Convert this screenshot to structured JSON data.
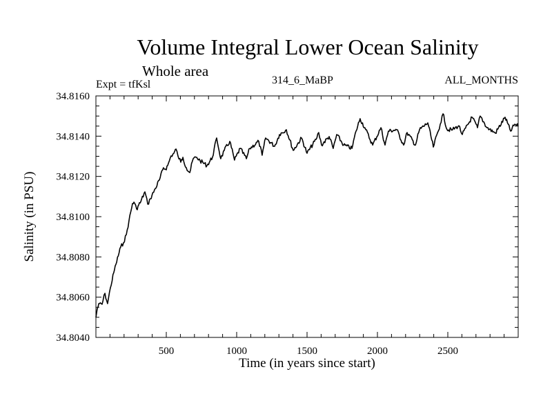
{
  "chart_data": {
    "type": "line",
    "title": "Volume Integral Lower Ocean Salinity",
    "subtitle": "Whole area",
    "annotations": {
      "left": "Expt = tfKsl",
      "center": "314_6_MaBP",
      "right": "ALL_MONTHS"
    },
    "xlabel": "Time (in years since start)",
    "ylabel": "Salinity (in PSU)",
    "xlim": [
      0,
      3000
    ],
    "ylim": [
      34.804,
      34.816
    ],
    "x_ticks": [
      500,
      1000,
      1500,
      2000,
      2500
    ],
    "x_tick_labels": [
      "500",
      "1000",
      "1500",
      "2000",
      "2500"
    ],
    "x_minor_step": 100,
    "y_ticks": [
      34.804,
      34.806,
      34.808,
      34.81,
      34.812,
      34.814,
      34.816
    ],
    "y_tick_labels": [
      "34.8040",
      "34.8060",
      "34.8080",
      "34.8100",
      "34.8120",
      "34.8140",
      "34.8160"
    ],
    "y_minor_step": 0.0005,
    "grid": false,
    "series": [
      {
        "name": "Salinity",
        "color": "#000000",
        "x": [
          0,
          10,
          25,
          44,
          64,
          83,
          103,
          127,
          142,
          176,
          196,
          216,
          235,
          260,
          270,
          289,
          304,
          319,
          348,
          368,
          387,
          422,
          451,
          480,
          495,
          510,
          534,
          554,
          569,
          583,
          603,
          618,
          642,
          667,
          691,
          716,
          740,
          789,
          828,
          858,
          887,
          912,
          951,
          985,
          1025,
          1069,
          1093,
          1157,
          1181,
          1206,
          1270,
          1304,
          1353,
          1402,
          1461,
          1500,
          1564,
          1583,
          1603,
          1657,
          1686,
          1711,
          1760,
          1819,
          1848,
          1877,
          1917,
          1966,
          2025,
          2054,
          2078,
          2137,
          2186,
          2211,
          2270,
          2299,
          2358,
          2397,
          2446,
          2466,
          2495,
          2534,
          2578,
          2603,
          2672,
          2711,
          2730,
          2779,
          2838,
          2907,
          2946,
          2975,
          3000
        ],
        "y": [
          34.80499,
          34.80544,
          34.80568,
          34.80565,
          34.80619,
          34.80568,
          34.80647,
          34.80722,
          34.80763,
          34.80849,
          34.8087,
          34.80911,
          34.80979,
          34.81065,
          34.81072,
          34.81038,
          34.81058,
          34.81075,
          34.81123,
          34.81062,
          34.81089,
          34.8114,
          34.81182,
          34.81243,
          34.81236,
          34.81254,
          34.81302,
          34.81315,
          34.81336,
          34.81302,
          34.81271,
          34.81295,
          34.81243,
          34.81219,
          34.81288,
          34.81295,
          34.81278,
          34.81254,
          34.81295,
          34.81391,
          34.81288,
          34.81329,
          34.81374,
          34.81281,
          34.81339,
          34.81288,
          34.81339,
          34.81374,
          34.81305,
          34.81391,
          34.8135,
          34.81408,
          34.81432,
          34.81329,
          34.81391,
          34.81315,
          34.81384,
          34.81418,
          34.81356,
          34.81398,
          34.81339,
          34.81408,
          34.81356,
          34.81339,
          34.81425,
          34.81487,
          34.81432,
          34.81356,
          34.81442,
          34.81356,
          34.81425,
          34.81432,
          34.81356,
          34.81418,
          34.81356,
          34.81432,
          34.81466,
          34.81346,
          34.81459,
          34.81511,
          34.81432,
          34.81432,
          34.81452,
          34.81408,
          34.81494,
          34.81442,
          34.815,
          34.81442,
          34.81415,
          34.81494,
          34.81425,
          34.81459,
          34.81449
        ]
      }
    ]
  }
}
